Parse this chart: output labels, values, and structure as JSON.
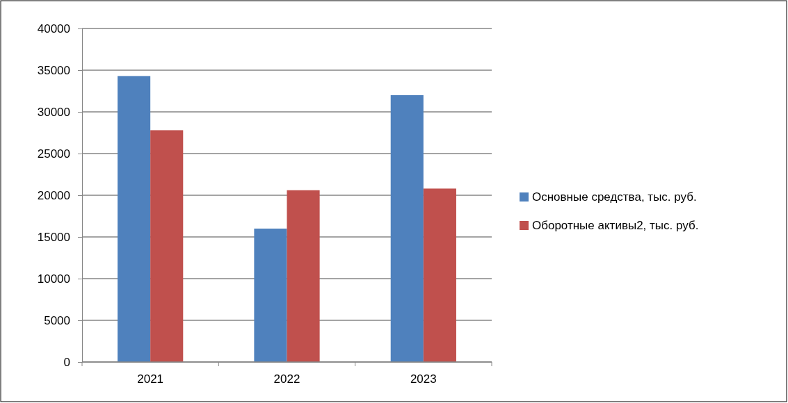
{
  "chart_data": {
    "type": "bar",
    "categories": [
      "2021",
      "2022",
      "2023"
    ],
    "series": [
      {
        "name": "Основные средства, тыс. руб.",
        "color": "#4f81bd",
        "values": [
          34300,
          16000,
          32000
        ]
      },
      {
        "name": "Оборотные активы2, тыс. руб.",
        "color": "#c0504d",
        "values": [
          27800,
          20600,
          20800
        ]
      }
    ],
    "ylim": [
      0,
      40000
    ],
    "yticks": [
      0,
      5000,
      10000,
      15000,
      20000,
      25000,
      30000,
      35000,
      40000
    ],
    "grid": "y",
    "legend": "right"
  }
}
